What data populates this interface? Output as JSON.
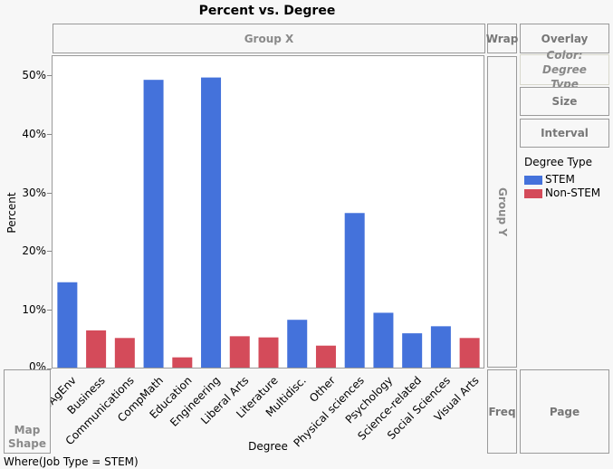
{
  "chart_data": {
    "type": "bar",
    "title": "Percent vs. Degree",
    "xlabel": "Degree",
    "ylabel": "Percent",
    "ylim": [
      0,
      53
    ],
    "yticks": [
      "0%",
      "10%",
      "20%",
      "30%",
      "40%",
      "50%"
    ],
    "ytick_values": [
      0,
      10,
      20,
      30,
      40,
      50
    ],
    "grid": false,
    "legend_placement": "right",
    "legend_title": "Degree Type",
    "series": [
      {
        "name": "STEM",
        "color": "#4472db"
      },
      {
        "name": "Non-STEM",
        "color": "#d44b5a"
      }
    ],
    "categories": [
      "BioAgEnv",
      "Business",
      "Communications",
      "CompMath",
      "Education",
      "Engineering",
      "Liberal Arts",
      "Literature",
      "Multidisc.",
      "Other",
      "Physical sciences",
      "Psychology",
      "Science-related",
      "Social Sciences",
      "Visual Arts"
    ],
    "values": [
      14.7,
      6.5,
      5.2,
      49.2,
      1.9,
      49.6,
      5.5,
      5.3,
      8.3,
      3.9,
      26.5,
      9.5,
      6.0,
      7.2,
      5.2
    ],
    "group": [
      "STEM",
      "Non-STEM",
      "Non-STEM",
      "STEM",
      "Non-STEM",
      "STEM",
      "Non-STEM",
      "Non-STEM",
      "STEM",
      "Non-STEM",
      "STEM",
      "STEM",
      "STEM",
      "STEM",
      "Non-STEM"
    ]
  },
  "zones": {
    "group_x": "Group X",
    "wrap": "Wrap",
    "overlay": "Overlay",
    "color": "Color: Degree Type",
    "size": "Size",
    "interval": "Interval",
    "group_y": "Group Y",
    "map_shape": "Map Shape",
    "freq": "Freq",
    "page": "Page"
  },
  "where": "Where(Job Type = STEM)"
}
